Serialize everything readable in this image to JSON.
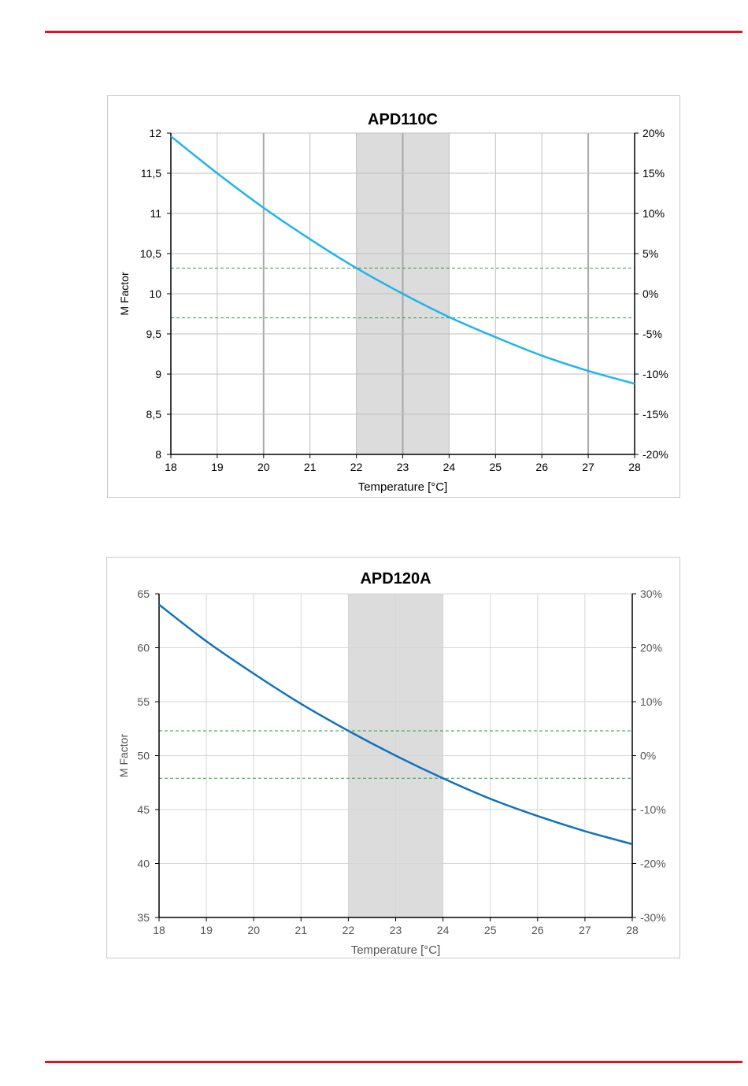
{
  "page": {
    "rule_color": "#e8101e"
  },
  "chart_data": [
    {
      "type": "line",
      "title": "APD110C",
      "xlabel": "Temperature  [°C]",
      "ylabel": "M Factor",
      "xlim": [
        18,
        28
      ],
      "ylim": [
        8,
        12
      ],
      "x_ticks": [
        "18",
        "19",
        "20",
        "21",
        "22",
        "23",
        "24",
        "25",
        "26",
        "27",
        "28"
      ],
      "y_ticks": [
        "8",
        "8,5",
        "9",
        "9,5",
        "10",
        "10,5",
        "11",
        "11,5",
        "12"
      ],
      "y2_ticks": [
        "-20%",
        "-15%",
        "-10%",
        "-5%",
        "0%",
        "5%",
        "10%",
        "15%",
        "20%"
      ],
      "y2lim": [
        -20,
        20
      ],
      "shaded_band_x": [
        22,
        24
      ],
      "reference_lines_y": [
        10.32,
        9.7
      ],
      "series": [
        {
          "color": "#1eb4ee",
          "x": [
            18,
            19,
            20,
            21,
            22,
            23,
            24,
            25,
            26,
            27,
            28
          ],
          "y": [
            11.96,
            11.5,
            11.07,
            10.68,
            10.32,
            10.0,
            9.71,
            9.46,
            9.23,
            9.04,
            8.88
          ]
        }
      ],
      "grid": true
    },
    {
      "type": "line",
      "title": "APD120A",
      "xlabel": "Temperature  [°C]",
      "ylabel": "M Factor",
      "xlim": [
        18,
        28
      ],
      "ylim": [
        35,
        65
      ],
      "x_ticks": [
        "18",
        "19",
        "20",
        "21",
        "22",
        "23",
        "24",
        "25",
        "26",
        "27",
        "28"
      ],
      "y_ticks": [
        "35",
        "40",
        "45",
        "50",
        "55",
        "60",
        "65"
      ],
      "y2_ticks": [
        "-30%",
        "-20%",
        "-10%",
        "0%",
        "10%",
        "20%",
        "30%"
      ],
      "y2lim": [
        -30,
        30
      ],
      "shaded_band_x": [
        22,
        24
      ],
      "reference_lines_y": [
        52.3,
        47.9
      ],
      "series": [
        {
          "color": "#0f72bd",
          "x": [
            18,
            19,
            20,
            21,
            22,
            23,
            24,
            25,
            26,
            27,
            28
          ],
          "y": [
            64.0,
            60.6,
            57.6,
            54.8,
            52.3,
            50.0,
            47.9,
            46.0,
            44.4,
            43.0,
            41.8
          ]
        }
      ],
      "grid": true
    }
  ]
}
